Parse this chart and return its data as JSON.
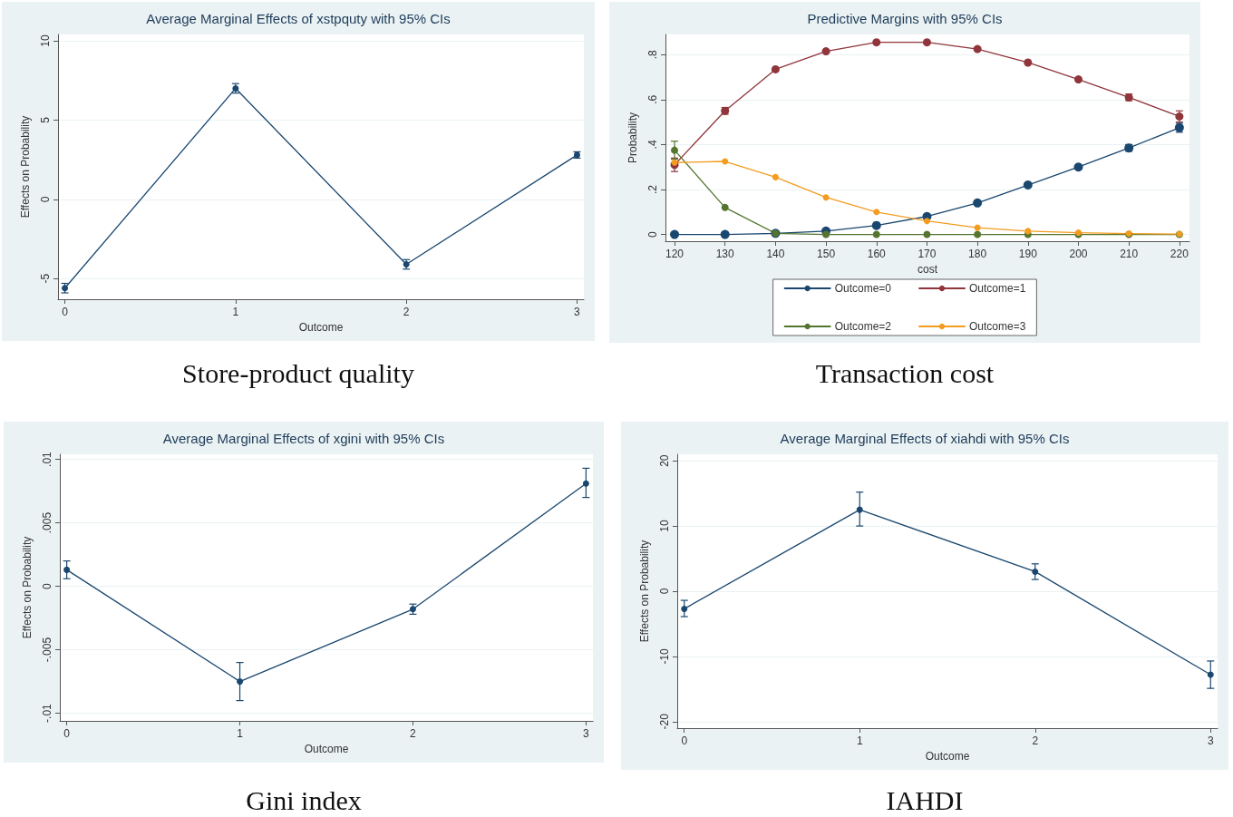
{
  "chart_data": [
    {
      "type": "line",
      "title": "Average Marginal Effects of xstpquty with 95% CIs",
      "xlabel": "Outcome",
      "ylabel": "Effects on Probability",
      "annotations": [
        "Store-product quality"
      ],
      "x": [
        0,
        1,
        2,
        3
      ],
      "xlim": [
        -0.04,
        3.04
      ],
      "xticks": [
        0,
        1,
        2,
        3
      ],
      "ylim": [
        -6.3,
        10.4
      ],
      "yticks": [
        -5,
        0,
        5,
        10
      ],
      "grid": "y",
      "marker": "circle",
      "line_style": "solid",
      "series": [
        {
          "color": "#1a476f",
          "values": [
            -5.6,
            7.0,
            -4.1,
            2.8
          ],
          "errors": [
            0.3,
            0.3,
            0.3,
            0.2
          ]
        }
      ]
    },
    {
      "type": "line",
      "title": "Predictive Margins with 95% CIs",
      "xlabel": "cost",
      "ylabel": "Probability",
      "annotations": [
        "Transaction cost"
      ],
      "x": [
        120,
        130,
        140,
        150,
        160,
        170,
        180,
        190,
        200,
        210,
        220
      ],
      "xlim": [
        118.2,
        222
      ],
      "xticks": [
        120,
        130,
        140,
        150,
        160,
        170,
        180,
        190,
        200,
        210,
        220
      ],
      "ylim": [
        -0.03,
        0.89
      ],
      "yticks": [
        0,
        {
          "value": 0.2,
          "label": ".2"
        },
        {
          "value": 0.4,
          "label": ".4"
        },
        {
          "value": 0.6,
          "label": ".6"
        },
        {
          "value": 0.8,
          "label": ".8"
        }
      ],
      "grid": "y",
      "marker": "circle",
      "line_style": "solid",
      "legend": "bottom",
      "series": [
        {
          "name": "Outcome=0",
          "color": "#1a476f",
          "values": [
            0,
            0,
            0.005,
            0.015,
            0.04,
            0.08,
            0.14,
            0.22,
            0.3,
            0.385,
            0.475
          ],
          "errors": [
            null,
            null,
            null,
            null,
            null,
            null,
            null,
            null,
            null,
            0.015,
            0.02
          ]
        },
        {
          "name": "Outcome=1",
          "color": "#90353b",
          "values": [
            0.31,
            0.55,
            0.735,
            0.815,
            0.855,
            0.855,
            0.825,
            0.765,
            0.69,
            0.61,
            0.525
          ],
          "errors": [
            0.03,
            0.015,
            null,
            null,
            null,
            null,
            null,
            null,
            null,
            0.015,
            0.025
          ]
        },
        {
          "name": "Outcome=2",
          "color": "#55752f",
          "values": [
            0.375,
            0.12,
            0.005,
            0,
            0,
            0,
            0,
            0,
            0,
            0,
            0
          ],
          "errors": [
            0.04,
            null,
            null,
            null,
            null,
            null,
            null,
            null,
            null,
            null,
            null
          ]
        },
        {
          "name": "Outcome=3",
          "color": "#f39c1f",
          "values": [
            0.32,
            0.325,
            0.255,
            0.165,
            0.1,
            0.06,
            0.03,
            0.015,
            0.008,
            0.004,
            0.002
          ]
        }
      ]
    },
    {
      "type": "line",
      "title": "Average Marginal Effects of xgini with 95% CIs",
      "xlabel": "Outcome",
      "ylabel": "Effects on Probability",
      "annotations": [
        "Gini index"
      ],
      "x": [
        0,
        1,
        2,
        3
      ],
      "xlim": [
        -0.04,
        3.04
      ],
      "xticks": [
        0,
        1,
        2,
        3
      ],
      "ylim": [
        -0.0106,
        0.0104
      ],
      "yticks": [
        {
          "value": -0.01,
          "label": "-.01"
        },
        {
          "value": -0.005,
          "label": "-.005"
        },
        0,
        {
          "value": 0.005,
          "label": ".005"
        },
        {
          "value": 0.01,
          "label": ".01"
        }
      ],
      "grid": "y",
      "marker": "circle",
      "line_style": "solid",
      "series": [
        {
          "color": "#1a476f",
          "values": [
            0.0013,
            -0.0075,
            -0.0018,
            0.0081
          ],
          "errors": [
            [
              0.0006,
              0.002
            ],
            [
              -0.009,
              -0.006
            ],
            [
              -0.0022,
              -0.0014
            ],
            [
              0.007,
              0.0093
            ]
          ]
        }
      ]
    },
    {
      "type": "line",
      "title": "Average Marginal Effects of xiahdi with 95% CIs",
      "xlabel": "Outcome",
      "ylabel": "Effects on Probability",
      "annotations": [
        "IAHDI"
      ],
      "x": [
        0,
        1,
        2,
        3
      ],
      "xlim": [
        -0.04,
        3.04
      ],
      "xticks": [
        0,
        1,
        2,
        3
      ],
      "ylim": [
        -21,
        21
      ],
      "yticks": [
        -20,
        -10,
        0,
        10,
        20
      ],
      "grid": "y",
      "marker": "circle",
      "line_style": "solid",
      "series": [
        {
          "color": "#1a476f",
          "values": [
            -2.7,
            12.5,
            3.0,
            -12.8
          ],
          "errors": [
            [
              -3.9,
              -1.4
            ],
            [
              10,
              15.2
            ],
            [
              1.8,
              4.2
            ],
            [
              -14.9,
              -10.7
            ]
          ]
        }
      ]
    }
  ]
}
